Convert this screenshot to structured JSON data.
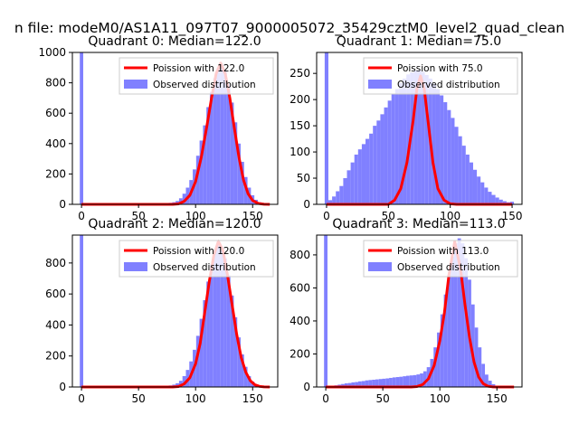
{
  "suptitle": "n file: modeM0/AS1A11_097T07_9000005072_35429cztM0_level2_quad_clean",
  "colors": {
    "bar": "#8080ff",
    "curve": "#ff0000",
    "axis": "#000000",
    "legend_border": "#cccccc"
  },
  "chart_data": [
    {
      "type": "bar",
      "title": "Quadrant 0: Median=122.0",
      "median": 122.0,
      "xlim": [
        -8,
        172
      ],
      "ylim": [
        0,
        1000
      ],
      "xticks": [
        "0",
        "50",
        "100",
        "150"
      ],
      "yticks": [
        "0",
        "200",
        "400",
        "600",
        "800",
        "1000"
      ],
      "legend": {
        "placement": "top-right",
        "line_label": "Poission with 122.0",
        "bar_label": "Observed distribution"
      },
      "bar_width": 3,
      "bars": [
        [
          0,
          1000
        ],
        [
          75,
          4
        ],
        [
          78,
          10
        ],
        [
          81,
          14
        ],
        [
          84,
          22
        ],
        [
          87,
          40
        ],
        [
          90,
          70
        ],
        [
          93,
          110
        ],
        [
          96,
          160
        ],
        [
          99,
          230
        ],
        [
          102,
          320
        ],
        [
          105,
          420
        ],
        [
          108,
          520
        ],
        [
          111,
          640
        ],
        [
          114,
          740
        ],
        [
          117,
          830
        ],
        [
          120,
          900
        ],
        [
          123,
          920
        ],
        [
          126,
          880
        ],
        [
          129,
          790
        ],
        [
          132,
          670
        ],
        [
          135,
          540
        ],
        [
          138,
          400
        ],
        [
          141,
          280
        ],
        [
          144,
          180
        ],
        [
          147,
          110
        ],
        [
          150,
          60
        ],
        [
          153,
          30
        ],
        [
          156,
          14
        ],
        [
          159,
          6
        ],
        [
          162,
          2
        ]
      ],
      "curve": [
        [
          0,
          0
        ],
        [
          80,
          0
        ],
        [
          85,
          3
        ],
        [
          90,
          20
        ],
        [
          95,
          60
        ],
        [
          100,
          150
        ],
        [
          105,
          310
        ],
        [
          110,
          520
        ],
        [
          114,
          700
        ],
        [
          118,
          860
        ],
        [
          122,
          930
        ],
        [
          126,
          860
        ],
        [
          130,
          700
        ],
        [
          134,
          500
        ],
        [
          138,
          310
        ],
        [
          142,
          160
        ],
        [
          146,
          70
        ],
        [
          150,
          25
        ],
        [
          155,
          6
        ],
        [
          160,
          1
        ],
        [
          165,
          0
        ]
      ]
    },
    {
      "type": "bar",
      "title": "Quadrant 1: Median=75.0",
      "median": 75.0,
      "xlim": [
        -8,
        158
      ],
      "ylim": [
        0,
        290
      ],
      "xticks": [
        "0",
        "50",
        "100",
        "150"
      ],
      "yticks": [
        "0",
        "50",
        "100",
        "150",
        "200",
        "250"
      ],
      "legend": {
        "placement": "top-right",
        "line_label": "Poission with 75.0",
        "bar_label": "Observed distribution"
      },
      "bar_width": 3,
      "bars": [
        [
          0,
          290
        ],
        [
          3,
          8
        ],
        [
          6,
          15
        ],
        [
          9,
          25
        ],
        [
          12,
          35
        ],
        [
          15,
          50
        ],
        [
          18,
          65
        ],
        [
          21,
          80
        ],
        [
          24,
          95
        ],
        [
          27,
          105
        ],
        [
          30,
          115
        ],
        [
          33,
          125
        ],
        [
          36,
          135
        ],
        [
          39,
          150
        ],
        [
          42,
          160
        ],
        [
          45,
          172
        ],
        [
          48,
          185
        ],
        [
          51,
          198
        ],
        [
          54,
          210
        ],
        [
          57,
          220
        ],
        [
          60,
          232
        ],
        [
          63,
          240
        ],
        [
          66,
          248
        ],
        [
          69,
          252
        ],
        [
          72,
          255
        ],
        [
          75,
          256
        ],
        [
          78,
          253
        ],
        [
          81,
          247
        ],
        [
          84,
          240
        ],
        [
          87,
          230
        ],
        [
          90,
          220
        ],
        [
          93,
          208
        ],
        [
          96,
          195
        ],
        [
          99,
          180
        ],
        [
          102,
          165
        ],
        [
          105,
          148
        ],
        [
          108,
          130
        ],
        [
          111,
          112
        ],
        [
          114,
          95
        ],
        [
          117,
          80
        ],
        [
          120,
          66
        ],
        [
          123,
          53
        ],
        [
          126,
          42
        ],
        [
          129,
          32
        ],
        [
          132,
          24
        ],
        [
          135,
          18
        ],
        [
          138,
          13
        ],
        [
          141,
          9
        ],
        [
          144,
          6
        ],
        [
          147,
          4
        ],
        [
          150,
          5
        ]
      ],
      "curve": [
        [
          0,
          0
        ],
        [
          50,
          0
        ],
        [
          55,
          8
        ],
        [
          60,
          30
        ],
        [
          65,
          80
        ],
        [
          70,
          160
        ],
        [
          73,
          220
        ],
        [
          76,
          245
        ],
        [
          79,
          220
        ],
        [
          82,
          160
        ],
        [
          86,
          80
        ],
        [
          90,
          30
        ],
        [
          95,
          8
        ],
        [
          100,
          1
        ],
        [
          105,
          0
        ],
        [
          150,
          0
        ]
      ]
    },
    {
      "type": "bar",
      "title": "Quadrant 2: Median=120.0",
      "median": 120.0,
      "xlim": [
        -8,
        172
      ],
      "ylim": [
        0,
        980
      ],
      "xticks": [
        "0",
        "50",
        "100",
        "150"
      ],
      "yticks": [
        "0",
        "200",
        "400",
        "600",
        "800"
      ],
      "legend": {
        "placement": "top-right",
        "line_label": "Poission with 120.0",
        "bar_label": "Observed distribution"
      },
      "bar_width": 3,
      "bars": [
        [
          0,
          980
        ],
        [
          75,
          4
        ],
        [
          78,
          10
        ],
        [
          81,
          15
        ],
        [
          84,
          24
        ],
        [
          87,
          40
        ],
        [
          90,
          70
        ],
        [
          93,
          110
        ],
        [
          96,
          165
        ],
        [
          99,
          240
        ],
        [
          102,
          330
        ],
        [
          105,
          440
        ],
        [
          108,
          560
        ],
        [
          111,
          680
        ],
        [
          114,
          790
        ],
        [
          117,
          880
        ],
        [
          120,
          920
        ],
        [
          123,
          900
        ],
        [
          126,
          830
        ],
        [
          129,
          720
        ],
        [
          132,
          590
        ],
        [
          135,
          450
        ],
        [
          138,
          320
        ],
        [
          141,
          210
        ],
        [
          144,
          130
        ],
        [
          147,
          70
        ],
        [
          150,
          35
        ],
        [
          153,
          16
        ],
        [
          156,
          7
        ],
        [
          159,
          3
        ],
        [
          162,
          1
        ]
      ],
      "curve": [
        [
          0,
          0
        ],
        [
          80,
          0
        ],
        [
          85,
          3
        ],
        [
          90,
          20
        ],
        [
          95,
          60
        ],
        [
          100,
          150
        ],
        [
          104,
          280
        ],
        [
          108,
          480
        ],
        [
          112,
          680
        ],
        [
          116,
          850
        ],
        [
          120,
          940
        ],
        [
          124,
          880
        ],
        [
          128,
          720
        ],
        [
          132,
          530
        ],
        [
          136,
          340
        ],
        [
          140,
          190
        ],
        [
          144,
          95
        ],
        [
          148,
          40
        ],
        [
          152,
          14
        ],
        [
          156,
          4
        ],
        [
          160,
          1
        ],
        [
          165,
          0
        ]
      ]
    },
    {
      "type": "bar",
      "title": "Quadrant 3: Median=113.0",
      "median": 113.0,
      "xlim": [
        -8,
        172
      ],
      "ylim": [
        0,
        920
      ],
      "xticks": [
        "0",
        "50",
        "100",
        "150"
      ],
      "yticks": [
        "0",
        "200",
        "400",
        "600",
        "800"
      ],
      "legend": {
        "placement": "top-right",
        "line_label": "Poission with 113.0",
        "bar_label": "Observed distribution"
      },
      "bar_width": 3,
      "bars": [
        [
          0,
          920
        ],
        [
          3,
          6
        ],
        [
          6,
          8
        ],
        [
          9,
          10
        ],
        [
          12,
          14
        ],
        [
          15,
          18
        ],
        [
          18,
          22
        ],
        [
          21,
          24
        ],
        [
          24,
          28
        ],
        [
          27,
          30
        ],
        [
          30,
          34
        ],
        [
          33,
          36
        ],
        [
          36,
          40
        ],
        [
          39,
          42
        ],
        [
          42,
          44
        ],
        [
          45,
          46
        ],
        [
          48,
          48
        ],
        [
          51,
          50
        ],
        [
          54,
          52
        ],
        [
          57,
          55
        ],
        [
          60,
          58
        ],
        [
          63,
          60
        ],
        [
          66,
          62
        ],
        [
          69,
          65
        ],
        [
          72,
          68
        ],
        [
          75,
          70
        ],
        [
          78,
          72
        ],
        [
          81,
          76
        ],
        [
          84,
          82
        ],
        [
          87,
          95
        ],
        [
          90,
          120
        ],
        [
          93,
          170
        ],
        [
          96,
          240
        ],
        [
          99,
          330
        ],
        [
          102,
          440
        ],
        [
          105,
          560
        ],
        [
          108,
          680
        ],
        [
          111,
          790
        ],
        [
          114,
          870
        ],
        [
          117,
          900
        ],
        [
          120,
          870
        ],
        [
          123,
          780
        ],
        [
          126,
          650
        ],
        [
          129,
          500
        ],
        [
          132,
          360
        ],
        [
          135,
          240
        ],
        [
          138,
          140
        ],
        [
          141,
          75
        ],
        [
          144,
          38
        ],
        [
          147,
          17
        ],
        [
          150,
          8
        ],
        [
          153,
          3
        ]
      ],
      "curve": [
        [
          0,
          0
        ],
        [
          75,
          0
        ],
        [
          80,
          3
        ],
        [
          85,
          15
        ],
        [
          90,
          50
        ],
        [
          95,
          130
        ],
        [
          100,
          280
        ],
        [
          104,
          450
        ],
        [
          108,
          680
        ],
        [
          113,
          880
        ],
        [
          118,
          720
        ],
        [
          122,
          500
        ],
        [
          126,
          300
        ],
        [
          130,
          150
        ],
        [
          134,
          60
        ],
        [
          138,
          20
        ],
        [
          142,
          5
        ],
        [
          146,
          1
        ],
        [
          150,
          0
        ],
        [
          165,
          0
        ]
      ]
    }
  ]
}
